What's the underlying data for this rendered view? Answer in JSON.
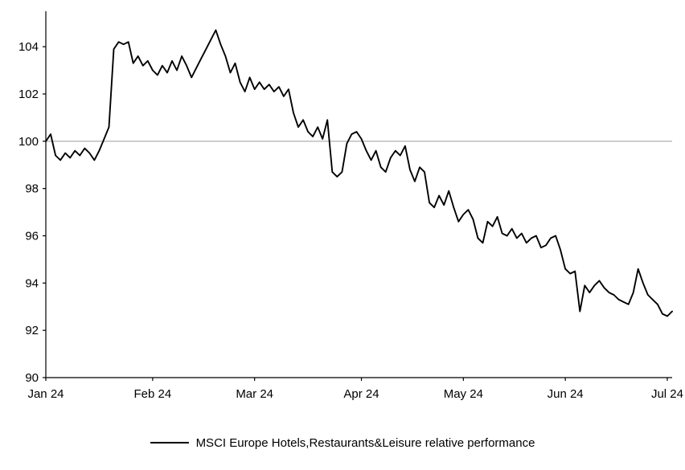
{
  "chart_data": {
    "type": "line",
    "title": "",
    "xlabel": "",
    "ylabel": "",
    "ylim": [
      90,
      105.5
    ],
    "yticks": [
      90,
      92,
      94,
      96,
      98,
      100,
      102,
      104
    ],
    "xticks": [
      {
        "label": "Jan 24",
        "day": 0
      },
      {
        "label": "Feb 24",
        "day": 22
      },
      {
        "label": "Mar 24",
        "day": 43
      },
      {
        "label": "Apr 24",
        "day": 65
      },
      {
        "label": "May 24",
        "day": 86
      },
      {
        "label": "Jun 24",
        "day": 107
      },
      {
        "label": "Jul 24",
        "day": 128
      }
    ],
    "refline": {
      "y": 100,
      "color": "#a6a6a6"
    },
    "grid": "off",
    "legend_position": "bottom-center",
    "series": [
      {
        "name": "MSCI Europe Hotels,Restaurants&Leisure relative performance",
        "color": "#000000",
        "values": [
          100.0,
          100.3,
          99.4,
          99.2,
          99.5,
          99.3,
          99.6,
          99.4,
          99.7,
          99.5,
          99.2,
          99.6,
          100.1,
          100.6,
          103.9,
          104.2,
          104.1,
          104.2,
          103.3,
          103.6,
          103.2,
          103.4,
          103.0,
          102.8,
          103.2,
          102.9,
          103.4,
          103.0,
          103.6,
          103.2,
          102.7,
          103.1,
          103.5,
          103.9,
          104.3,
          104.7,
          104.1,
          103.6,
          102.9,
          103.3,
          102.5,
          102.1,
          102.7,
          102.2,
          102.5,
          102.2,
          102.4,
          102.1,
          102.3,
          101.9,
          102.2,
          101.2,
          100.6,
          100.9,
          100.4,
          100.2,
          100.6,
          100.1,
          100.9,
          98.7,
          98.5,
          98.7,
          99.9,
          100.3,
          100.4,
          100.1,
          99.6,
          99.2,
          99.6,
          98.9,
          98.7,
          99.3,
          99.6,
          99.4,
          99.8,
          98.8,
          98.3,
          98.9,
          98.7,
          97.4,
          97.2,
          97.7,
          97.3,
          97.9,
          97.2,
          96.6,
          96.9,
          97.1,
          96.7,
          95.9,
          95.7,
          96.6,
          96.4,
          96.8,
          96.1,
          96.0,
          96.3,
          95.9,
          96.1,
          95.7,
          95.9,
          96.0,
          95.5,
          95.6,
          95.9,
          96.0,
          95.4,
          94.6,
          94.4,
          94.5,
          92.8,
          93.9,
          93.6,
          93.9,
          94.1,
          93.8,
          93.6,
          93.5,
          93.3,
          93.2,
          93.1,
          93.6,
          94.6,
          94.0,
          93.5,
          93.3,
          93.1,
          92.7,
          92.6,
          92.8
        ]
      }
    ]
  },
  "colors": {
    "background": "#ffffff",
    "axis": "#000000",
    "text": "#000000"
  }
}
